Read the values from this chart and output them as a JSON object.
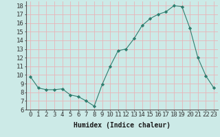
{
  "x": [
    0,
    1,
    2,
    3,
    4,
    5,
    6,
    7,
    8,
    9,
    10,
    11,
    12,
    13,
    14,
    15,
    16,
    17,
    18,
    19,
    20,
    21,
    22,
    23
  ],
  "y": [
    9.8,
    8.5,
    8.3,
    8.3,
    8.4,
    7.7,
    7.5,
    7.0,
    6.4,
    8.9,
    11.0,
    12.8,
    13.0,
    14.2,
    15.7,
    16.5,
    17.0,
    17.3,
    18.0,
    17.9,
    15.4,
    12.0,
    9.9,
    8.5
  ],
  "line_color": "#2e7d6e",
  "marker": "D",
  "marker_size": 2.2,
  "bg_color": "#cceae7",
  "grid_color": "#e8b4b8",
  "title": "",
  "xlabel": "Humidex (Indice chaleur)",
  "ylabel": "",
  "xlim": [
    -0.5,
    23.5
  ],
  "ylim": [
    6,
    18.5
  ],
  "yticks": [
    6,
    7,
    8,
    9,
    10,
    11,
    12,
    13,
    14,
    15,
    16,
    17,
    18
  ],
  "xticks": [
    0,
    1,
    2,
    3,
    4,
    5,
    6,
    7,
    8,
    9,
    10,
    11,
    12,
    13,
    14,
    15,
    16,
    17,
    18,
    19,
    20,
    21,
    22,
    23
  ],
  "xlabel_fontsize": 7,
  "tick_fontsize": 6.5
}
